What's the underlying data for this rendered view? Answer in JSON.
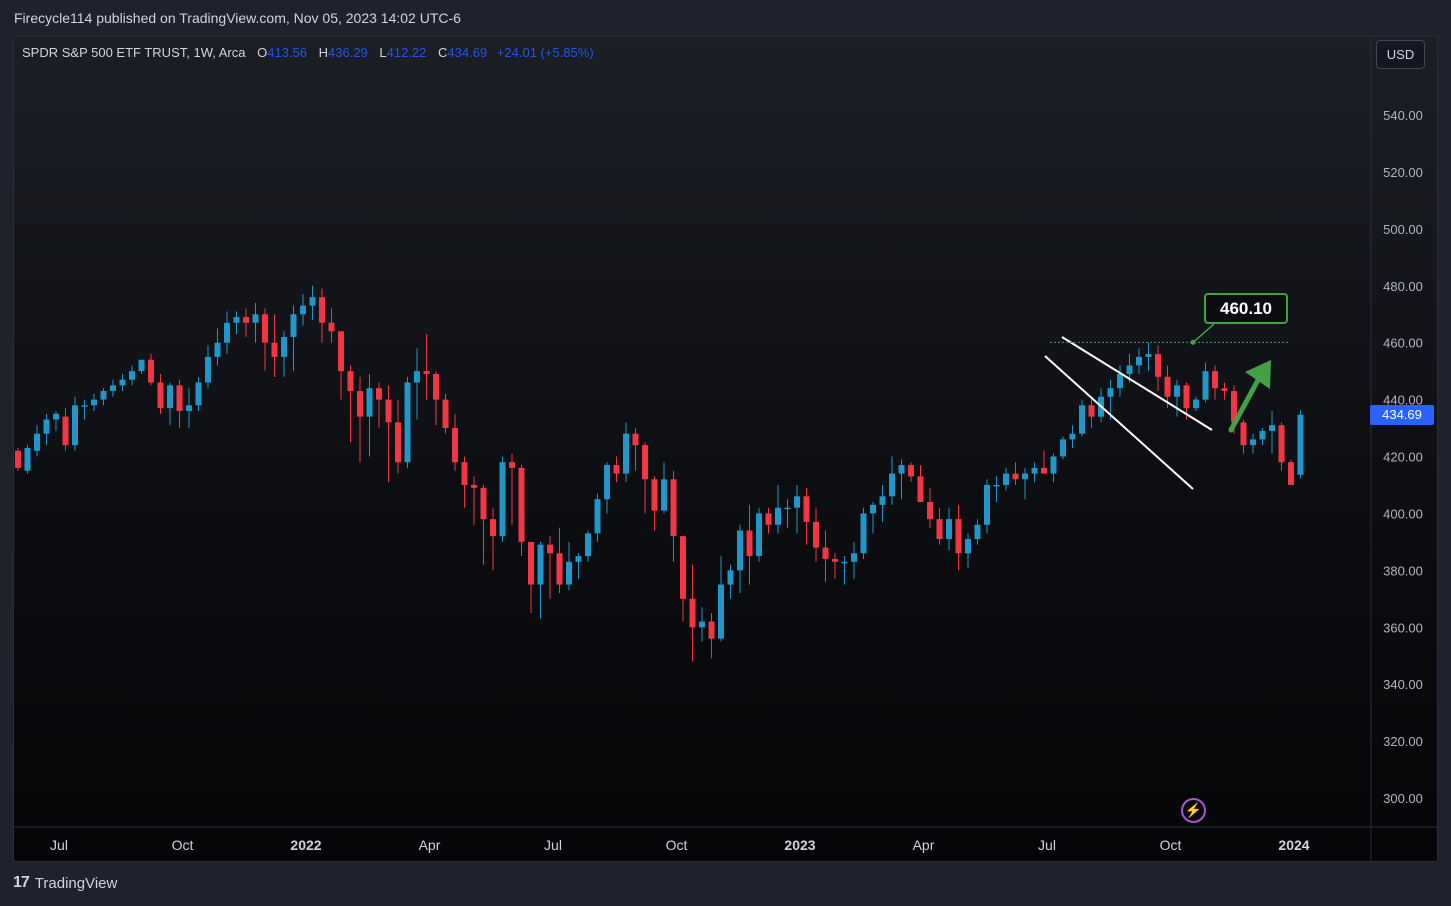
{
  "header": {
    "publish_text": "Firecycle114 published on TradingView.com, Nov 05, 2023 14:02 UTC-6"
  },
  "legend": {
    "symbol": "SPDR S&P 500 ETF TRUST, 1W, Arca",
    "o_label": "O",
    "o_value": "413.56",
    "h_label": "H",
    "h_value": "436.29",
    "l_label": "L",
    "l_value": "412.22",
    "c_label": "C",
    "c_value": "434.69",
    "change": "+24.01 (+5.85%)"
  },
  "currency_button": "USD",
  "last_price_tag": "434.69",
  "target_label": "460.10",
  "footer": {
    "brand_icon": "tv-logo-icon",
    "brand": "TradingView"
  },
  "colors": {
    "up": "#2196c8",
    "down": "#f23645",
    "price_tag": "#2962ff",
    "target": "#43a047",
    "channel": "#ffffff"
  },
  "chart_data": {
    "type": "candlestick",
    "interval": "1W",
    "symbol": "SPDR S&P 500 ETF TRUST",
    "exchange": "Arca",
    "ylim": [
      290,
      556
    ],
    "y_ticks": [
      300,
      320,
      340,
      360,
      380,
      400,
      420,
      440,
      460,
      480,
      500,
      520,
      540
    ],
    "y_tick_labels": [
      "300.00",
      "320.00",
      "340.00",
      "360.00",
      "380.00",
      "400.00",
      "420.00",
      "440.00",
      "460.00",
      "480.00",
      "500.00",
      "520.00",
      "540.00"
    ],
    "x_ticks": [
      {
        "label": "Jul",
        "bold": false,
        "bar": 4
      },
      {
        "label": "Oct",
        "bold": false,
        "bar": 17
      },
      {
        "label": "2022",
        "bold": true,
        "bar": 30
      },
      {
        "label": "Apr",
        "bold": false,
        "bar": 43
      },
      {
        "label": "Jul",
        "bold": false,
        "bar": 56
      },
      {
        "label": "Oct",
        "bold": false,
        "bar": 69
      },
      {
        "label": "2023",
        "bold": true,
        "bar": 82
      },
      {
        "label": "Apr",
        "bold": false,
        "bar": 95
      },
      {
        "label": "Jul",
        "bold": false,
        "bar": 108
      },
      {
        "label": "Oct",
        "bold": false,
        "bar": 121
      },
      {
        "label": "2024",
        "bold": true,
        "bar": 134
      }
    ],
    "ohlc": [
      [
        422,
        423,
        415,
        416
      ],
      [
        415,
        424,
        414,
        423
      ],
      [
        422,
        431,
        420,
        428
      ],
      [
        428,
        435,
        424,
        433
      ],
      [
        433,
        436,
        429,
        435
      ],
      [
        434,
        437,
        422,
        424
      ],
      [
        424,
        441,
        422,
        438
      ],
      [
        438,
        440,
        433,
        438
      ],
      [
        438,
        442,
        436,
        440
      ],
      [
        440,
        444,
        438,
        443
      ],
      [
        443,
        447,
        441,
        445
      ],
      [
        445,
        449,
        443,
        447
      ],
      [
        447,
        452,
        445,
        450
      ],
      [
        450,
        454,
        449,
        454
      ],
      [
        454,
        456,
        445,
        446
      ],
      [
        446,
        449,
        435,
        437
      ],
      [
        437,
        446,
        431,
        445
      ],
      [
        445,
        447,
        430,
        436
      ],
      [
        436,
        444,
        430,
        438
      ],
      [
        438,
        448,
        436,
        446
      ],
      [
        446,
        459,
        444,
        455
      ],
      [
        455,
        465,
        452,
        460
      ],
      [
        460,
        471,
        456,
        467
      ],
      [
        467,
        471,
        463,
        469
      ],
      [
        469,
        472,
        462,
        467
      ],
      [
        467,
        474,
        460,
        470
      ],
      [
        470,
        472,
        450,
        460
      ],
      [
        460,
        470,
        448,
        455
      ],
      [
        455,
        464,
        448,
        462
      ],
      [
        462,
        473,
        450,
        470
      ],
      [
        470,
        477,
        466,
        473
      ],
      [
        473,
        480,
        468,
        476
      ],
      [
        476,
        479,
        460,
        467
      ],
      [
        467,
        472,
        460,
        464
      ],
      [
        464,
        464,
        440,
        450
      ],
      [
        450,
        452,
        425,
        443
      ],
      [
        443,
        448,
        418,
        434
      ],
      [
        434,
        449,
        420,
        444
      ],
      [
        444,
        446,
        430,
        440
      ],
      [
        440,
        445,
        411,
        432
      ],
      [
        432,
        440,
        414,
        418
      ],
      [
        418,
        448,
        416,
        446
      ],
      [
        446,
        458,
        433,
        450
      ],
      [
        450,
        463,
        440,
        449
      ],
      [
        449,
        450,
        431,
        440
      ],
      [
        440,
        442,
        428,
        430
      ],
      [
        430,
        435,
        415,
        418
      ],
      [
        418,
        420,
        402,
        410
      ],
      [
        410,
        413,
        396,
        409
      ],
      [
        409,
        410,
        382,
        398
      ],
      [
        398,
        402,
        380,
        392
      ],
      [
        392,
        420,
        390,
        418
      ],
      [
        418,
        421,
        396,
        416
      ],
      [
        416,
        417,
        385,
        390
      ],
      [
        390,
        390,
        365,
        375
      ],
      [
        375,
        390,
        363,
        389
      ],
      [
        389,
        392,
        370,
        386
      ],
      [
        386,
        395,
        372,
        375
      ],
      [
        375,
        390,
        373,
        383
      ],
      [
        383,
        386,
        377,
        385
      ],
      [
        385,
        394,
        383,
        393
      ],
      [
        393,
        407,
        390,
        405
      ],
      [
        405,
        418,
        400,
        417
      ],
      [
        417,
        420,
        411,
        414
      ],
      [
        414,
        432,
        411,
        428
      ],
      [
        428,
        430,
        415,
        424
      ],
      [
        424,
        425,
        400,
        412
      ],
      [
        412,
        413,
        394,
        401
      ],
      [
        401,
        418,
        400,
        412
      ],
      [
        412,
        415,
        383,
        392
      ],
      [
        392,
        392,
        362,
        370
      ],
      [
        370,
        382,
        348,
        360
      ],
      [
        360,
        367,
        355,
        362
      ],
      [
        362,
        365,
        349,
        356
      ],
      [
        356,
        385,
        355,
        375
      ],
      [
        375,
        382,
        370,
        380
      ],
      [
        380,
        396,
        372,
        394
      ],
      [
        394,
        403,
        375,
        385
      ],
      [
        385,
        402,
        383,
        400
      ],
      [
        400,
        402,
        393,
        396
      ],
      [
        396,
        410,
        393,
        402
      ],
      [
        402,
        405,
        395,
        402
      ],
      [
        402,
        410,
        393,
        406
      ],
      [
        406,
        409,
        389,
        397
      ],
      [
        397,
        402,
        383,
        388
      ],
      [
        388,
        394,
        376,
        384
      ],
      [
        384,
        386,
        377,
        383
      ],
      [
        383,
        385,
        375,
        383
      ],
      [
        383,
        390,
        377,
        386
      ],
      [
        386,
        402,
        384,
        400
      ],
      [
        400,
        404,
        393,
        403
      ],
      [
        403,
        410,
        397,
        406
      ],
      [
        406,
        420,
        403,
        414
      ],
      [
        414,
        419,
        405,
        417
      ],
      [
        417,
        418,
        411,
        413
      ],
      [
        413,
        417,
        404,
        404
      ],
      [
        404,
        409,
        395,
        398
      ],
      [
        398,
        402,
        389,
        391
      ],
      [
        391,
        402,
        387,
        398
      ],
      [
        398,
        403,
        380,
        386
      ],
      [
        386,
        393,
        381,
        391
      ],
      [
        391,
        398,
        389,
        396
      ],
      [
        396,
        412,
        393,
        410
      ],
      [
        410,
        413,
        404,
        410
      ],
      [
        410,
        416,
        408,
        414
      ],
      [
        414,
        418,
        410,
        412
      ],
      [
        412,
        416,
        405,
        414
      ],
      [
        414,
        418,
        411,
        416
      ],
      [
        416,
        422,
        414,
        414
      ],
      [
        414,
        421,
        411,
        420
      ],
      [
        420,
        427,
        419,
        426
      ],
      [
        426,
        431,
        423,
        428
      ],
      [
        428,
        440,
        427,
        438
      ],
      [
        438,
        440,
        430,
        434
      ],
      [
        434,
        444,
        432,
        441
      ],
      [
        441,
        447,
        433,
        444
      ],
      [
        444,
        452,
        441,
        449
      ],
      [
        449,
        456,
        446,
        452
      ],
      [
        452,
        458,
        449,
        455
      ],
      [
        455,
        460,
        450,
        456
      ],
      [
        456,
        459,
        443,
        448
      ],
      [
        448,
        452,
        437,
        441
      ],
      [
        441,
        447,
        434,
        445
      ],
      [
        445,
        446,
        433,
        437
      ],
      [
        437,
        441,
        436,
        440
      ],
      [
        440,
        453,
        439,
        450
      ],
      [
        450,
        452,
        440,
        444
      ],
      [
        444,
        446,
        440,
        443
      ],
      [
        443,
        445,
        428,
        432
      ],
      [
        432,
        433,
        421,
        424
      ],
      [
        424,
        428,
        421,
        426
      ],
      [
        426,
        430,
        424,
        429
      ],
      [
        429,
        436,
        421,
        431
      ],
      [
        431,
        432,
        415,
        418
      ],
      [
        418,
        419,
        410,
        410
      ],
      [
        413.56,
        436.29,
        412.22,
        434.69
      ]
    ],
    "annotations": {
      "channel_upper": [
        [
          1062,
          337
        ],
        [
          1212,
          430
        ]
      ],
      "channel_lower": [
        [
          1045,
          356
        ],
        [
          1193,
          489
        ]
      ],
      "target_level": 460.1,
      "arrow": "up, green"
    }
  }
}
